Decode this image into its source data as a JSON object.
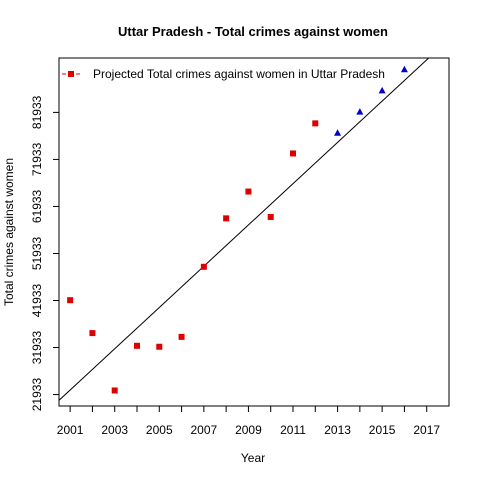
{
  "chart_data": {
    "type": "scatter",
    "title": "Uttar Pradesh  -  Total crimes against women",
    "xlabel": "Year",
    "ylabel": "Total crimes against women",
    "xlim": [
      2000.5,
      2018
    ],
    "ylim": [
      19500,
      93500
    ],
    "x_ticks": [
      2001,
      2003,
      2005,
      2007,
      2009,
      2011,
      2013,
      2015,
      2017
    ],
    "y_ticks": [
      21933,
      31933,
      41933,
      51933,
      61933,
      71933,
      81933
    ],
    "grid": false,
    "legend": {
      "position": "top-left",
      "entries": [
        "Projected  Total crimes against women  in  Uttar Pradesh"
      ]
    },
    "colors": {
      "actual": "#dd0000",
      "projected": "#0000cc",
      "trend": "#000000"
    },
    "series": [
      {
        "marker": "square",
        "x": [
          2001,
          2002,
          2003,
          2004,
          2005,
          2006,
          2007,
          2008,
          2009,
          2010,
          2011,
          2012
        ],
        "y": [
          42000,
          35000,
          22800,
          32300,
          32100,
          34200,
          49100,
          59400,
          65100,
          59700,
          73200,
          79600
        ]
      },
      {
        "marker": "triangle",
        "x": [
          2013,
          2014,
          2015,
          2016
        ],
        "y": [
          77500,
          82000,
          86500,
          91000
        ]
      }
    ],
    "trend_line": {
      "x": [
        2000.5,
        2018
      ],
      "y": [
        20700,
        97500
      ]
    }
  }
}
